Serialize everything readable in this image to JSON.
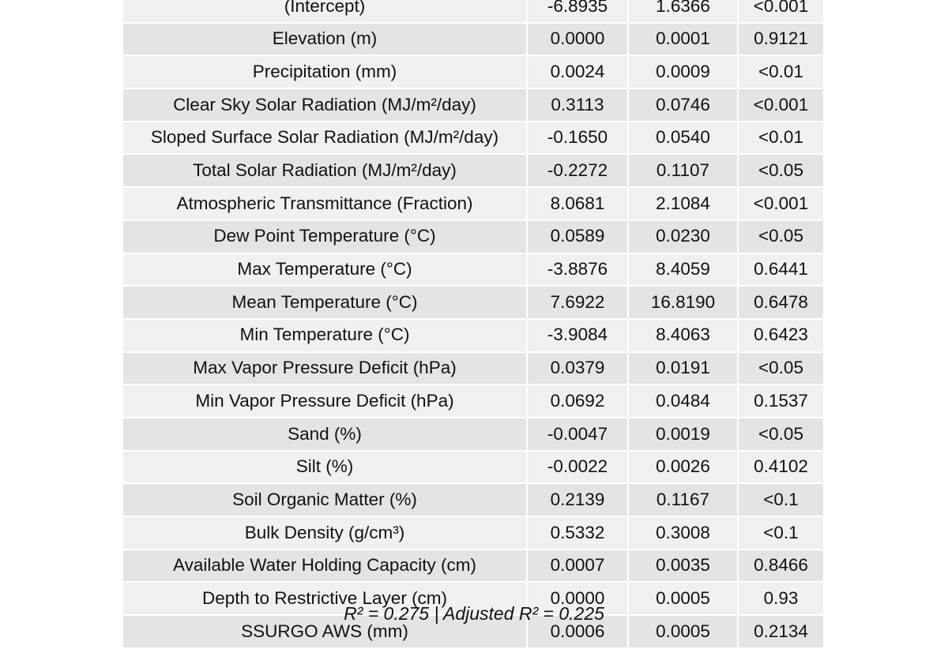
{
  "rows": [
    {
      "term": "(Intercept)",
      "estimate": "-6.8935",
      "std_error": "1.6366",
      "p_value": "<0.001"
    },
    {
      "term": "Elevation (m)",
      "estimate": "0.0000",
      "std_error": "0.0001",
      "p_value": "0.9121"
    },
    {
      "term": "Precipitation (mm)",
      "estimate": "0.0024",
      "std_error": "0.0009",
      "p_value": "<0.01"
    },
    {
      "term": "Clear Sky Solar Radiation (MJ/m²/day)",
      "estimate": "0.3113",
      "std_error": "0.0746",
      "p_value": "<0.001"
    },
    {
      "term": "Sloped Surface Solar Radiation (MJ/m²/day)",
      "estimate": "-0.1650",
      "std_error": "0.0540",
      "p_value": "<0.01"
    },
    {
      "term": "Total Solar Radiation (MJ/m²/day)",
      "estimate": "-0.2272",
      "std_error": "0.1107",
      "p_value": "<0.05"
    },
    {
      "term": "Atmospheric Transmittance (Fraction)",
      "estimate": "8.0681",
      "std_error": "2.1084",
      "p_value": "<0.001"
    },
    {
      "term": "Dew Point Temperature (°C)",
      "estimate": "0.0589",
      "std_error": "0.0230",
      "p_value": "<0.05"
    },
    {
      "term": "Max Temperature (°C)",
      "estimate": "-3.8876",
      "std_error": "8.4059",
      "p_value": "0.6441"
    },
    {
      "term": "Mean Temperature (°C)",
      "estimate": "7.6922",
      "std_error": "16.8190",
      "p_value": "0.6478"
    },
    {
      "term": "Min Temperature (°C)",
      "estimate": "-3.9084",
      "std_error": "8.4063",
      "p_value": "0.6423"
    },
    {
      "term": "Max Vapor Pressure Deficit (hPa)",
      "estimate": "0.0379",
      "std_error": "0.0191",
      "p_value": "<0.05"
    },
    {
      "term": "Min Vapor Pressure Deficit (hPa)",
      "estimate": "0.0692",
      "std_error": "0.0484",
      "p_value": "0.1537"
    },
    {
      "term": "Sand (%)",
      "estimate": "-0.0047",
      "std_error": "0.0019",
      "p_value": "<0.05"
    },
    {
      "term": "Silt (%)",
      "estimate": "-0.0022",
      "std_error": "0.0026",
      "p_value": "0.4102"
    },
    {
      "term": "Soil Organic Matter (%)",
      "estimate": "0.2139",
      "std_error": "0.1167",
      "p_value": "<0.1"
    },
    {
      "term": "Bulk Density (g/cm³)",
      "estimate": "0.5332",
      "std_error": "0.3008",
      "p_value": "<0.1"
    },
    {
      "term": "Available Water Holding Capacity (cm)",
      "estimate": "0.0007",
      "std_error": "0.0035",
      "p_value": "0.8466"
    },
    {
      "term": "Depth to Restrictive Layer (cm)",
      "estimate": "0.0000",
      "std_error": "0.0005",
      "p_value": "0.93"
    },
    {
      "term": "SSURGO AWS (mm)",
      "estimate": "0.0006",
      "std_error": "0.0005",
      "p_value": "0.2134"
    }
  ],
  "footnote": "R² = 0.275 | Adjusted R² = 0.225"
}
